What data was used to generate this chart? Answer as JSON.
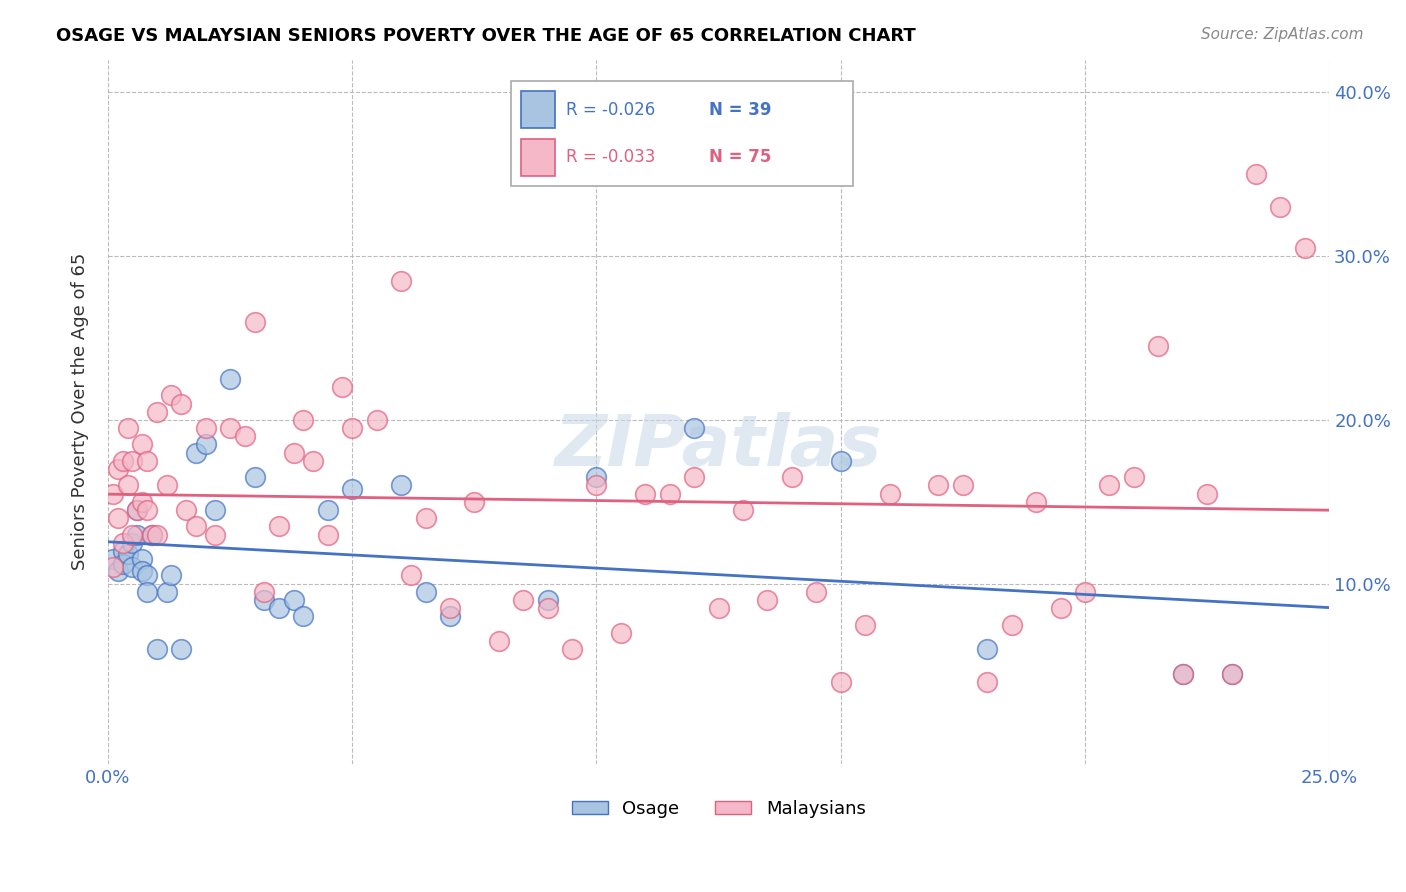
{
  "title": "OSAGE VS MALAYSIAN SENIORS POVERTY OVER THE AGE OF 65 CORRELATION CHART",
  "source": "Source: ZipAtlas.com",
  "ylabel": "Seniors Poverty Over the Age of 65",
  "x_min": 0.0,
  "x_max": 0.25,
  "y_min": -0.01,
  "y_max": 0.42,
  "x_ticks": [
    0.0,
    0.05,
    0.1,
    0.15,
    0.2,
    0.25
  ],
  "x_tick_labels": [
    "0.0%",
    "",
    "",
    "",
    "",
    "25.0%"
  ],
  "y_ticks": [
    0.1,
    0.2,
    0.3,
    0.4
  ],
  "y_tick_labels": [
    "10.0%",
    "20.0%",
    "30.0%",
    "40.0%"
  ],
  "osage_R": -0.026,
  "osage_N": 39,
  "malaysian_R": -0.033,
  "malaysian_N": 75,
  "osage_color": "#a8c4e0",
  "osage_line_color": "#4472c4",
  "malaysian_color": "#f4b8c8",
  "malaysian_line_color": "#e06080",
  "watermark": "ZIPatlas",
  "osage_x": [
    0.001,
    0.002,
    0.003,
    0.003,
    0.004,
    0.005,
    0.005,
    0.006,
    0.006,
    0.007,
    0.007,
    0.008,
    0.008,
    0.009,
    0.01,
    0.012,
    0.013,
    0.015,
    0.018,
    0.02,
    0.022,
    0.025,
    0.03,
    0.032,
    0.035,
    0.038,
    0.04,
    0.045,
    0.05,
    0.06,
    0.065,
    0.07,
    0.09,
    0.1,
    0.12,
    0.15,
    0.18,
    0.22,
    0.23
  ],
  "osage_y": [
    0.115,
    0.108,
    0.12,
    0.112,
    0.118,
    0.125,
    0.11,
    0.13,
    0.145,
    0.115,
    0.108,
    0.105,
    0.095,
    0.13,
    0.06,
    0.095,
    0.105,
    0.06,
    0.18,
    0.185,
    0.145,
    0.225,
    0.165,
    0.09,
    0.085,
    0.09,
    0.08,
    0.145,
    0.158,
    0.16,
    0.095,
    0.08,
    0.09,
    0.165,
    0.195,
    0.175,
    0.06,
    0.045,
    0.045
  ],
  "malaysian_x": [
    0.001,
    0.001,
    0.002,
    0.002,
    0.003,
    0.003,
    0.004,
    0.004,
    0.005,
    0.005,
    0.006,
    0.007,
    0.007,
    0.008,
    0.008,
    0.009,
    0.01,
    0.01,
    0.012,
    0.013,
    0.015,
    0.016,
    0.018,
    0.02,
    0.022,
    0.025,
    0.028,
    0.03,
    0.032,
    0.035,
    0.038,
    0.04,
    0.042,
    0.045,
    0.048,
    0.05,
    0.055,
    0.06,
    0.062,
    0.065,
    0.07,
    0.075,
    0.08,
    0.085,
    0.09,
    0.095,
    0.1,
    0.105,
    0.11,
    0.115,
    0.12,
    0.125,
    0.13,
    0.135,
    0.14,
    0.145,
    0.15,
    0.155,
    0.16,
    0.17,
    0.175,
    0.18,
    0.185,
    0.19,
    0.195,
    0.2,
    0.205,
    0.21,
    0.215,
    0.22,
    0.225,
    0.23,
    0.235,
    0.24,
    0.245
  ],
  "malaysian_y": [
    0.155,
    0.11,
    0.17,
    0.14,
    0.175,
    0.125,
    0.195,
    0.16,
    0.175,
    0.13,
    0.145,
    0.185,
    0.15,
    0.175,
    0.145,
    0.13,
    0.205,
    0.13,
    0.16,
    0.215,
    0.21,
    0.145,
    0.135,
    0.195,
    0.13,
    0.195,
    0.19,
    0.26,
    0.095,
    0.135,
    0.18,
    0.2,
    0.175,
    0.13,
    0.22,
    0.195,
    0.2,
    0.285,
    0.105,
    0.14,
    0.085,
    0.15,
    0.065,
    0.09,
    0.085,
    0.06,
    0.16,
    0.07,
    0.155,
    0.155,
    0.165,
    0.085,
    0.145,
    0.09,
    0.165,
    0.095,
    0.04,
    0.075,
    0.155,
    0.16,
    0.16,
    0.04,
    0.075,
    0.15,
    0.085,
    0.095,
    0.16,
    0.165,
    0.245,
    0.045,
    0.155,
    0.045,
    0.35,
    0.33,
    0.305
  ]
}
